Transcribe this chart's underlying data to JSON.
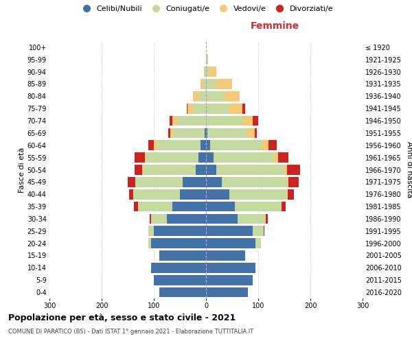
{
  "age_groups": [
    "0-4",
    "5-9",
    "10-14",
    "15-19",
    "20-24",
    "25-29",
    "30-34",
    "35-39",
    "40-44",
    "45-49",
    "50-54",
    "55-59",
    "60-64",
    "65-69",
    "70-74",
    "75-79",
    "80-84",
    "85-89",
    "90-94",
    "95-99",
    "100+"
  ],
  "birth_years": [
    "2016-2020",
    "2011-2015",
    "2006-2010",
    "2001-2005",
    "1996-2000",
    "1991-1995",
    "1986-1990",
    "1981-1985",
    "1976-1980",
    "1971-1975",
    "1966-1970",
    "1961-1965",
    "1956-1960",
    "1951-1955",
    "1946-1950",
    "1941-1945",
    "1936-1940",
    "1931-1935",
    "1926-1930",
    "1921-1925",
    "≤ 1920"
  ],
  "male": {
    "celibi": [
      90,
      100,
      105,
      90,
      105,
      100,
      75,
      65,
      50,
      45,
      20,
      15,
      10,
      3,
      0,
      0,
      0,
      0,
      0,
      0,
      0
    ],
    "coniugati": [
      0,
      0,
      0,
      0,
      5,
      10,
      30,
      65,
      90,
      90,
      100,
      100,
      85,
      60,
      55,
      25,
      15,
      5,
      2,
      0,
      0
    ],
    "vedovi": [
      0,
      0,
      0,
      0,
      0,
      0,
      0,
      0,
      0,
      0,
      2,
      2,
      5,
      5,
      10,
      10,
      10,
      5,
      2,
      0,
      0
    ],
    "divorziati": [
      0,
      0,
      0,
      0,
      0,
      0,
      3,
      8,
      8,
      15,
      15,
      20,
      10,
      5,
      5,
      2,
      0,
      0,
      0,
      0,
      0
    ]
  },
  "female": {
    "nubili": [
      80,
      90,
      95,
      75,
      95,
      90,
      60,
      55,
      45,
      30,
      20,
      15,
      8,
      3,
      0,
      0,
      0,
      0,
      0,
      0,
      0
    ],
    "coniugate": [
      0,
      0,
      0,
      0,
      10,
      20,
      55,
      90,
      110,
      125,
      130,
      115,
      100,
      75,
      70,
      45,
      35,
      20,
      5,
      2,
      0
    ],
    "vedove": [
      0,
      0,
      0,
      0,
      0,
      0,
      0,
      0,
      2,
      3,
      5,
      8,
      12,
      15,
      20,
      25,
      30,
      30,
      15,
      2,
      0
    ],
    "divorziate": [
      0,
      0,
      0,
      0,
      0,
      2,
      3,
      8,
      12,
      20,
      25,
      20,
      15,
      5,
      10,
      5,
      0,
      0,
      0,
      0,
      0
    ]
  },
  "colors": {
    "celibi": "#4472a8",
    "coniugati": "#c5d9a0",
    "vedovi": "#f5c97a",
    "divorziati": "#cc2222"
  },
  "xlim": 300,
  "title": "Popolazione per età, sesso e stato civile - 2021",
  "subtitle": "COMUNE DI PARATICO (BS) - Dati ISTAT 1° gennaio 2021 - Elaborazione TUTTITALIA.IT",
  "xlabel_right": "Femmine",
  "ylabel_left": "Fasce di età",
  "ylabel_right": "Anni di nascita",
  "legend_labels": [
    "Celibi/Nubili",
    "Coniugati/e",
    "Vedovi/e",
    "Divorziati/e"
  ],
  "bg_color": "#ffffff",
  "grid_color": "#cccccc"
}
